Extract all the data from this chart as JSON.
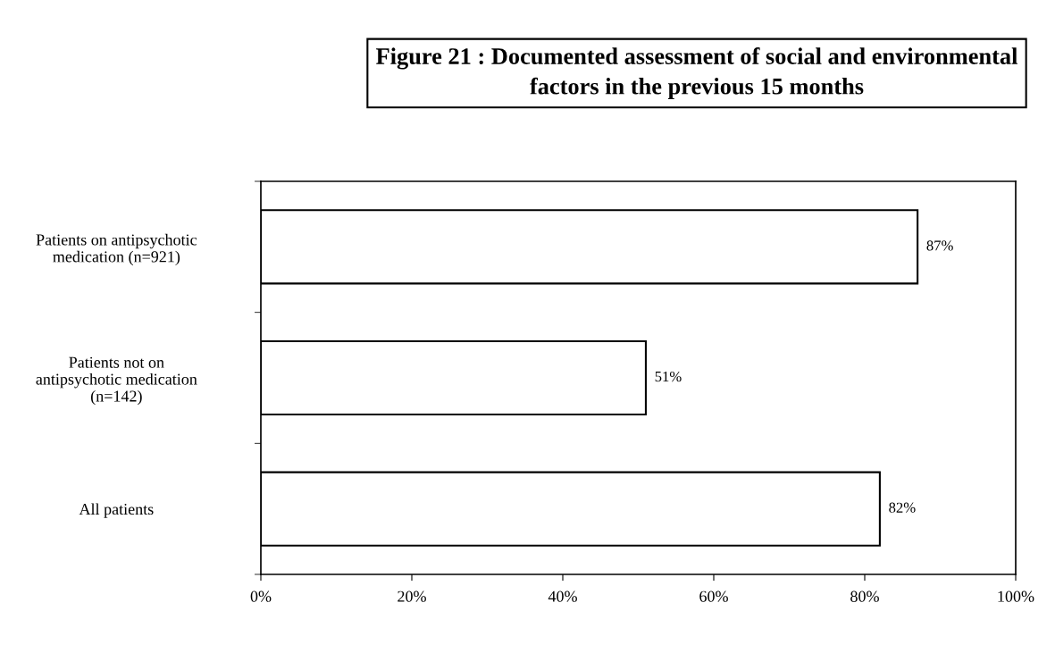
{
  "chart_data": {
    "type": "bar",
    "orientation": "horizontal",
    "title": "Figure 21 : Documented assessment of social and environmental\nfactors in the previous 15 months",
    "categories": [
      "Patients on antipsychotic\nmedication (n=921)",
      "Patients not on\nantipsychotic medication\n(n=142)",
      "All patients"
    ],
    "values": [
      87,
      51,
      82
    ],
    "color": "#ffffff",
    "value_labels": [
      "87%",
      "51%",
      "82%"
    ],
    "xlim": [
      0,
      100
    ],
    "xticks": [
      {
        "value": 0,
        "label": "0%"
      },
      {
        "value": 20,
        "label": "20%"
      },
      {
        "value": 40,
        "label": "40%"
      },
      {
        "value": 60,
        "label": "60%"
      },
      {
        "value": 80,
        "label": "80%"
      },
      {
        "value": 100,
        "label": "100%"
      }
    ],
    "grid": false
  }
}
